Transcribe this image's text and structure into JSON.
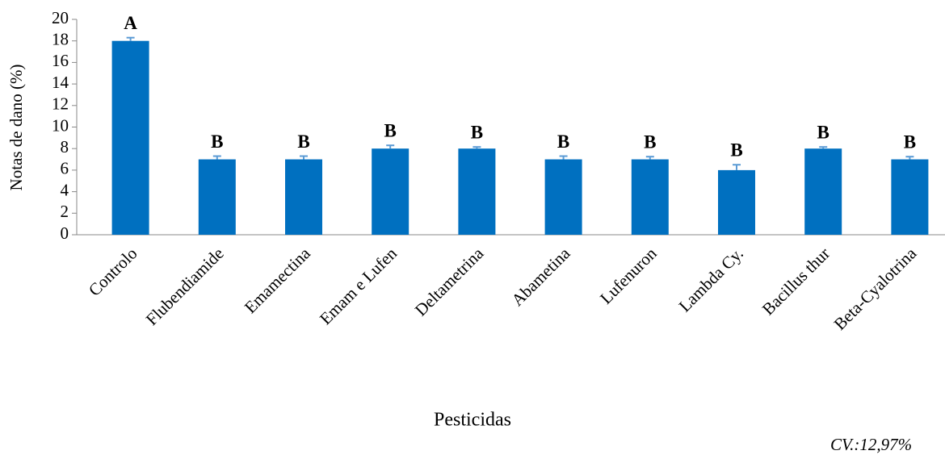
{
  "chart_data": {
    "type": "bar",
    "ylabel": "Notas de dano (%)",
    "xlabel": "Pesticidas",
    "annotation": "CV.:12,97%",
    "categories": [
      "Controlo",
      "Flubendiamide",
      "Emamectina",
      "Emam e Lufen",
      "Deltametrina",
      "Abametina",
      "Lufenuron",
      "Lambda Cy.",
      "Bacillus thur",
      "Beta-Cyalotrina"
    ],
    "values": [
      18,
      7,
      7,
      8,
      8,
      7,
      7,
      6,
      8,
      7
    ],
    "errors": [
      0.3,
      0.3,
      0.3,
      0.3,
      0.15,
      0.3,
      0.25,
      0.5,
      0.15,
      0.25
    ],
    "letters": [
      "A",
      "B",
      "B",
      "B",
      "B",
      "B",
      "B",
      "B",
      "B",
      "B"
    ],
    "color": "#0070c0",
    "error_color": "#5b9bd5",
    "ylim": [
      0,
      20
    ],
    "yticks": [
      0,
      2,
      4,
      6,
      8,
      10,
      12,
      14,
      16,
      18,
      20
    ],
    "grid": false
  }
}
